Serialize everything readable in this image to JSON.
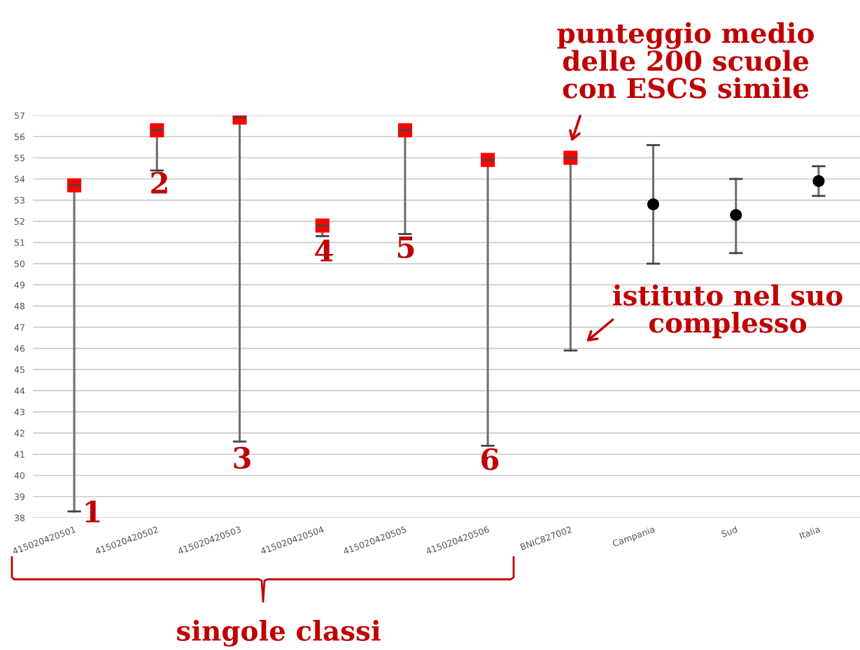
{
  "chart_data": {
    "type": "scatter",
    "categories": [
      "415020420501",
      "415020420502",
      "415020420503",
      "415020420504",
      "415020420505",
      "415020420506",
      "BNIC827002",
      "Campania",
      "Sud",
      "Italia"
    ],
    "series": [
      {
        "color": "#ff0000",
        "marker": "square",
        "values": [
          53.7,
          56.3,
          56.9,
          51.8,
          56.3,
          54.9,
          55.0,
          null,
          null,
          null
        ],
        "errors": [
          [
            38.3,
            53.7
          ],
          [
            54.4,
            56.3
          ],
          [
            41.6,
            56.9
          ],
          [
            51.3,
            51.8
          ],
          [
            51.4,
            56.3
          ],
          [
            41.4,
            54.9
          ],
          [
            45.9,
            55.0
          ],
          null,
          null,
          null
        ]
      },
      {
        "color": "#000000",
        "marker": "circle",
        "values": [
          null,
          null,
          null,
          null,
          null,
          null,
          null,
          52.8,
          52.3,
          53.9
        ],
        "errors": [
          null,
          null,
          null,
          null,
          null,
          null,
          null,
          [
            50.0,
            55.6
          ],
          [
            50.5,
            54.0
          ],
          [
            53.2,
            54.6
          ]
        ]
      }
    ],
    "ylim": [
      38,
      57
    ],
    "yticks": [
      38,
      39,
      40,
      41,
      42,
      43,
      44,
      45,
      46,
      47,
      48,
      49,
      50,
      51,
      52,
      53,
      54,
      55,
      56,
      57
    ],
    "grid": "y",
    "annotations": [
      "1",
      "2",
      "3",
      "4",
      "5",
      "6",
      "punteggio medio\ndelle 200 scuole\ncon ESCS simile",
      "istituto nel suo\ncomplesso",
      "singole classi"
    ]
  }
}
